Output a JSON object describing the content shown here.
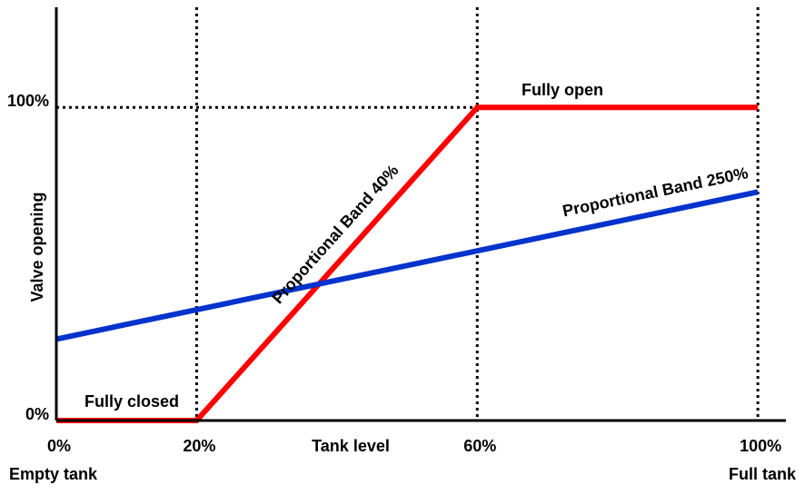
{
  "chart_data": {
    "type": "line",
    "x_label": "Tank level",
    "y_label": "Valve opening",
    "x_end_labels": [
      "Empty tank",
      "Full tank"
    ],
    "annotations": [
      "Fully closed",
      "Fully open"
    ],
    "series": [
      {
        "name": "Proportional Band 40%",
        "color": "#ff0000",
        "x": [
          0,
          20,
          60,
          100
        ],
        "values": [
          0,
          0,
          100,
          100
        ]
      },
      {
        "name": "Proportional Band 250%",
        "color": "#0033cc",
        "x": [
          0,
          100
        ],
        "values": [
          26,
          73
        ]
      }
    ],
    "xlim": [
      0,
      104
    ],
    "ylim": [
      0,
      132
    ],
    "xticks": [
      {
        "value": 0,
        "label": "0%"
      },
      {
        "value": 20,
        "label": "20%"
      },
      {
        "value": 60,
        "label": "60%"
      },
      {
        "value": 100,
        "label": "100%"
      }
    ],
    "yticks": [
      {
        "value": 0,
        "label": "0%"
      },
      {
        "value": 100,
        "label": "100%"
      }
    ],
    "grid": "dotted"
  }
}
